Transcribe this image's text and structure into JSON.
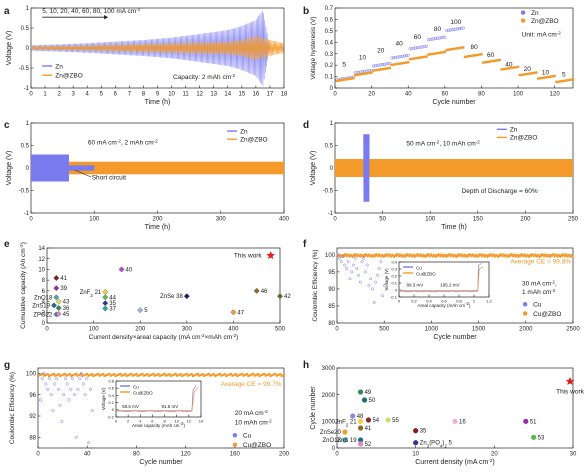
{
  "chart_data": [
    {
      "id": "a",
      "type": "line",
      "panel_label": "a",
      "xlabel": "Time (h)",
      "ylabel": "Voltage (V)",
      "xlim": [
        0,
        18
      ],
      "ylim": [
        -1.0,
        1.0
      ],
      "xticks": [
        0,
        1,
        2,
        3,
        4,
        5,
        6,
        7,
        8,
        9,
        10,
        11,
        12,
        13,
        14,
        15,
        16,
        17,
        18
      ],
      "yticks": [
        -1.0,
        -0.5,
        0.0,
        0.5,
        1.0
      ],
      "annotations": {
        "rates": "5, 10, 20, 40, 60, 80, 100 mA cm",
        "rates_sup": "-2",
        "capacity": "Capacity: 2 mAh cm",
        "capacity_sup": "-2"
      },
      "legend": [
        "Zn",
        "Zn@ZBO"
      ],
      "series": [
        {
          "name": "Zn",
          "color": "#7b7bf0",
          "envelope": [
            [
              0,
              0.07
            ],
            [
              2,
              0.09
            ],
            [
              4,
              0.12
            ],
            [
              6,
              0.16
            ],
            [
              8,
              0.2
            ],
            [
              10,
              0.26
            ],
            [
              12,
              0.35
            ],
            [
              14,
              0.45
            ],
            [
              15,
              0.55
            ],
            [
              16,
              0.7
            ],
            [
              16.5,
              0.95
            ],
            [
              17,
              0.0
            ]
          ]
        },
        {
          "name": "Zn@ZBO",
          "color": "#f39a2b",
          "envelope": [
            [
              0,
              0.04
            ],
            [
              2,
              0.05
            ],
            [
              4,
              0.06
            ],
            [
              6,
              0.08
            ],
            [
              8,
              0.1
            ],
            [
              10,
              0.12
            ],
            [
              12,
              0.14
            ],
            [
              14,
              0.16
            ],
            [
              15,
              0.2
            ],
            [
              16,
              0.3
            ],
            [
              17,
              0.2
            ],
            [
              18,
              0.12
            ]
          ]
        }
      ]
    },
    {
      "id": "b",
      "type": "scatter",
      "panel_label": "b",
      "xlabel": "Cycle number",
      "ylabel": "Voltage hysteresis (V)",
      "xlim": [
        0,
        130
      ],
      "ylim": [
        0.0,
        0.7
      ],
      "xticks": [
        0,
        20,
        40,
        60,
        80,
        100,
        120
      ],
      "yticks": [
        0.0,
        0.1,
        0.2,
        0.3,
        0.4,
        0.5,
        0.6,
        0.7
      ],
      "unit_note": "Unit: mA cm",
      "unit_sup": "-2",
      "legend": [
        "Zn",
        "Zn@ZBO"
      ],
      "rate_labels": [
        {
          "text": "5",
          "x": 5,
          "y": 0.19
        },
        {
          "text": "10",
          "x": 15,
          "y": 0.25
        },
        {
          "text": "20",
          "x": 25,
          "y": 0.31
        },
        {
          "text": "40",
          "x": 35,
          "y": 0.37
        },
        {
          "text": "60",
          "x": 45,
          "y": 0.43
        },
        {
          "text": "80",
          "x": 56,
          "y": 0.5
        },
        {
          "text": "100",
          "x": 66,
          "y": 0.56
        },
        {
          "text": "80",
          "x": 76,
          "y": 0.34
        },
        {
          "text": "60",
          "x": 85,
          "y": 0.27
        },
        {
          "text": "40",
          "x": 95,
          "y": 0.19
        },
        {
          "text": "20",
          "x": 105,
          "y": 0.15
        },
        {
          "text": "10",
          "x": 115,
          "y": 0.12
        },
        {
          "text": "5",
          "x": 125,
          "y": 0.1
        }
      ],
      "series": [
        {
          "name": "Zn",
          "color": "#7b7bf0",
          "x_range": [
            1,
            70
          ],
          "steps": [
            [
              0,
              10,
              0.07
            ],
            [
              10,
              20,
              0.13
            ],
            [
              20,
              30,
              0.19
            ],
            [
              30,
              40,
              0.26
            ],
            [
              40,
              50,
              0.34
            ],
            [
              50,
              60,
              0.42
            ],
            [
              60,
              70,
              0.5
            ]
          ]
        },
        {
          "name": "Zn@ZBO",
          "color": "#f39a2b",
          "x_range": [
            1,
            130
          ],
          "steps": [
            [
              0,
              10,
              0.06
            ],
            [
              10,
              20,
              0.11
            ],
            [
              20,
              30,
              0.15
            ],
            [
              30,
              40,
              0.2
            ],
            [
              40,
              50,
              0.25
            ],
            [
              50,
              60,
              0.29
            ],
            [
              60,
              70,
              0.33
            ],
            [
              70,
              80,
              0.27
            ],
            [
              80,
              90,
              0.22
            ],
            [
              90,
              100,
              0.16
            ],
            [
              100,
              110,
              0.11
            ],
            [
              110,
              120,
              0.08
            ],
            [
              120,
              130,
              0.05
            ]
          ]
        }
      ]
    },
    {
      "id": "c",
      "type": "line",
      "panel_label": "c",
      "xlabel": "Time (h)",
      "ylabel": "Voltage (V)",
      "xlim": [
        0,
        400
      ],
      "ylim": [
        -1.0,
        1.0
      ],
      "xticks": [
        0,
        100,
        200,
        300,
        400
      ],
      "yticks": [
        -1.0,
        -0.5,
        0.0,
        0.5,
        1.0
      ],
      "condition": "60 mA cm",
      "condition_sup": "-2",
      "condition_tail": ", 2 mAh cm",
      "condition_tail_sup": "-2",
      "note": "Short circuit",
      "legend": [
        "Zn",
        "Zn@ZBO"
      ],
      "series": [
        {
          "name": "Zn",
          "color": "#7b7bf0",
          "segments": [
            [
              0,
              60,
              0.3
            ],
            [
              60,
              100,
              0.05
            ]
          ]
        },
        {
          "name": "Zn@ZBO",
          "color": "#f39a2b",
          "segments": [
            [
              0,
              400,
              0.13
            ]
          ]
        }
      ]
    },
    {
      "id": "d",
      "type": "line",
      "panel_label": "d",
      "xlabel": "Time (h)",
      "ylabel": "Voltage (V)",
      "xlim": [
        0,
        250
      ],
      "ylim": [
        -1.0,
        1.0
      ],
      "xticks": [
        0,
        50,
        100,
        150,
        200,
        250
      ],
      "yticks": [
        -1.0,
        -0.5,
        0.0,
        0.5,
        1.0
      ],
      "condition": "50 mA cm",
      "condition_sup": "-2",
      "condition_tail": ", 10 mAh cm",
      "condition_tail_sup": "-2",
      "note": "Depth of Discharge = 60%",
      "legend": [
        "Zn",
        "Zn@ZBO"
      ],
      "series": [
        {
          "name": "Zn",
          "color": "#7b7bf0",
          "segments": [
            [
              30,
              35,
              0.7
            ]
          ]
        },
        {
          "name": "Zn@ZBO",
          "color": "#f39a2b",
          "segments": [
            [
              0,
              250,
              0.2
            ]
          ]
        }
      ]
    },
    {
      "id": "e",
      "type": "scatter",
      "panel_label": "e",
      "xlabel": "Current density×areal capacity (mA cm",
      "xlabel_sup": "-2",
      "xlabel_mid": "×mAh cm",
      "xlabel_end": ")",
      "ylabel": "Cumulative capacity (Ah cm",
      "ylabel_sup": "-2",
      "ylabel_end": ")",
      "xlim": [
        0,
        500
      ],
      "ylim": [
        0,
        14
      ],
      "xticks": [
        0,
        100,
        200,
        300,
        400,
        500
      ],
      "yticks": [
        0,
        2,
        4,
        6,
        8,
        10,
        12,
        14
      ],
      "points": [
        {
          "label": "41",
          "x": 20,
          "y": 8.4,
          "color": "#8b1a1a",
          "marker": "diamond"
        },
        {
          "label": "39",
          "x": 20,
          "y": 6.5,
          "color": "#9a2aa8",
          "marker": "diamond"
        },
        {
          "label": "ZnO18",
          "x": 20,
          "y": 4.8,
          "color": "#4aa8a8",
          "marker": "diamond"
        },
        {
          "label": "43",
          "x": 25,
          "y": 4.0,
          "color": "#e0e060",
          "marker": "diamond"
        },
        {
          "label": "ZnS19",
          "x": 15,
          "y": 3.3,
          "color": "#1c6e8c",
          "marker": "diamond"
        },
        {
          "label": "36",
          "x": 25,
          "y": 2.8,
          "color": "#2e8b57",
          "marker": "diamond"
        },
        {
          "label": "ZPO22",
          "x": 20,
          "y": 1.6,
          "color": "#5a7ac8",
          "marker": "diamond"
        },
        {
          "label": "45",
          "x": 25,
          "y": 1.7,
          "color": "#e08ac0",
          "marker": "diamond"
        },
        {
          "label": "40",
          "x": 160,
          "y": 10.0,
          "color": "#b64ad0",
          "marker": "diamond"
        },
        {
          "label": "ZnF",
          "label_sub": "2",
          "label_tail": " 21",
          "x": 125,
          "y": 5.8,
          "color": "#f2d03a",
          "marker": "diamond"
        },
        {
          "label": "44",
          "x": 125,
          "y": 4.8,
          "color": "#5ab84e",
          "marker": "diamond"
        },
        {
          "label": "35",
          "x": 125,
          "y": 3.7,
          "color": "#2a3a88",
          "marker": "diamond"
        },
        {
          "label": "37",
          "x": 125,
          "y": 2.7,
          "color": "#2aa8a8",
          "marker": "diamond"
        },
        {
          "label": "5",
          "x": 200,
          "y": 2.4,
          "color": "#a0b4e8",
          "marker": "diamond"
        },
        {
          "label": "ZnSe 38",
          "x": 300,
          "y": 5.0,
          "color": "#1a1a78",
          "marker": "diamond"
        },
        {
          "label": "46",
          "x": 450,
          "y": 6.0,
          "color": "#8a6a2a",
          "marker": "diamond"
        },
        {
          "label": "47",
          "x": 400,
          "y": 2.0,
          "color": "#f2a02a",
          "marker": "diamond"
        },
        {
          "label": "42",
          "x": 500,
          "y": 5.0,
          "color": "#6a6a1a",
          "marker": "diamond"
        },
        {
          "label": "This work",
          "x": 480,
          "y": 12.6,
          "color": "#e02020",
          "marker": "star"
        }
      ]
    },
    {
      "id": "f",
      "type": "scatter",
      "panel_label": "f",
      "xlabel": "Cycle number",
      "ylabel": "Coulombic Efficiency (%)",
      "xlim": [
        0,
        2500
      ],
      "ylim": [
        80,
        102
      ],
      "xticks": [
        0,
        500,
        1000,
        1500,
        2000,
        2500
      ],
      "yticks": [
        80,
        85,
        90,
        95,
        100
      ],
      "avg_ce": "Average CE = 99.8%",
      "condition": [
        "30 mA cm",
        "-2",
        ",",
        "1 mAh cm",
        "-2"
      ],
      "legend": [
        "Cu",
        "Cu@ZBO"
      ],
      "series": [
        {
          "name": "Cu",
          "color": "#7b7bf0",
          "x_range": [
            1,
            520
          ],
          "mean": 97,
          "scatter": 5
        },
        {
          "name": "Cu@ZBO",
          "color": "#f39a2b",
          "x_range": [
            1,
            2500
          ],
          "mean": 99.8
        }
      ],
      "inset": {
        "xlabel": "Areal capacity (mAh cm",
        "xlabel_sup": "-2",
        "xlabel_end": ")",
        "ylabel": "Voltage (V)",
        "xlim": [
          0,
          1.2
        ],
        "ylim": [
          -0.1,
          0.4
        ],
        "xticks": [
          0.0,
          0.2,
          0.4,
          0.6,
          0.8,
          1.0,
          1.2
        ],
        "yticks": [
          -0.1,
          0.0,
          0.1,
          0.2,
          0.3,
          0.4
        ],
        "legend": [
          "Cu",
          "Cu@ZBO"
        ],
        "annotations": [
          "89.3 mV",
          "195.2 mV"
        ]
      }
    },
    {
      "id": "g",
      "type": "scatter",
      "panel_label": "g",
      "xlabel": "Cycle number",
      "ylabel": "Coulombic Efficiency (%)",
      "xlim": [
        0,
        200
      ],
      "ylim": [
        86,
        101
      ],
      "xticks": [
        0,
        40,
        80,
        120,
        160,
        200
      ],
      "yticks": [
        88,
        92,
        96,
        100
      ],
      "avg_ce": "Average CE = 99.7%",
      "condition": [
        "20 mA cm",
        "-2",
        "10 mAh cm",
        "-2"
      ],
      "legend": [
        "Cu",
        "Cu@ZBO"
      ],
      "series": [
        {
          "name": "Cu",
          "color": "#7b7bf0",
          "x_range": [
            1,
            45
          ],
          "mean": 95,
          "scatter": 5
        },
        {
          "name": "Cu@ZBO",
          "color": "#f39a2b",
          "x_range": [
            1,
            200
          ],
          "mean": 99.7
        }
      ],
      "inset": {
        "xlabel": "Areal capacity (mAh cm",
        "xlabel_sup": "-2",
        "xlabel_end": ")",
        "ylabel": "Voltage (V)",
        "xlim": [
          0,
          14
        ],
        "ylim": [
          -0.2,
          0.8
        ],
        "xticks": [
          0,
          2,
          4,
          6,
          8,
          10,
          12,
          14
        ],
        "yticks": [
          -0.2,
          0.0,
          0.2,
          0.4,
          0.6,
          0.8
        ],
        "legend": [
          "Cu",
          "Cu@ZBO"
        ],
        "annotations": [
          "58.5 mV",
          "91.6 mV"
        ]
      }
    },
    {
      "id": "h",
      "type": "scatter",
      "panel_label": "h",
      "xlabel": "Current density (mA cm",
      "xlabel_sup": "-2",
      "xlabel_end": ")",
      "ylabel": "Cycle number",
      "xlim": [
        0,
        30
      ],
      "ylim": [
        0,
        3000
      ],
      "xticks": [
        0,
        10,
        20,
        30
      ],
      "yticks": [
        0,
        1000,
        2000,
        3000
      ],
      "points": [
        {
          "label": "49",
          "x": 3,
          "y": 2100,
          "color": "#2e8b57"
        },
        {
          "label": "50",
          "x": 3.5,
          "y": 1800,
          "color": "#1a6e6e"
        },
        {
          "label": "48",
          "x": 2,
          "y": 1200,
          "color": "#8a8ae8"
        },
        {
          "label": "54",
          "x": 4,
          "y": 1050,
          "color": "#8a2a2a"
        },
        {
          "label": "55",
          "x": 6.5,
          "y": 1050,
          "color": "#c8e070"
        },
        {
          "label": "ZnF",
          "label_sub": "2",
          "label_tail": " 21",
          "x": 3,
          "y": 1000,
          "color": "#f2d03a"
        },
        {
          "label": "41",
          "x": 3,
          "y": 750,
          "color": "#8a6a2a"
        },
        {
          "label": "ZnSe20",
          "x": 1,
          "y": 600,
          "color": "#f2a02a"
        },
        {
          "label": "35",
          "x": 10,
          "y": 650,
          "color": "#8b1a1a"
        },
        {
          "label": "ZnO18",
          "x": 1,
          "y": 300,
          "color": "#4aa8a8"
        },
        {
          "label": "ZnS 19",
          "x": 3,
          "y": 300,
          "color": "#1c6e8c"
        },
        {
          "label": "52",
          "x": 3,
          "y": 150,
          "color": "#e08ac0"
        },
        {
          "label": "Zn",
          "label_sub": "3",
          "label_mid": "(PO",
          "label_sub2": "4",
          "label_tail": ")",
          "label_sub3": "2",
          "label_end": " 5",
          "x": 10,
          "y": 200,
          "color": "#2a3a88"
        },
        {
          "label": "16",
          "x": 15,
          "y": 1000,
          "color": "#f0b0c8"
        },
        {
          "label": "51",
          "x": 24,
          "y": 1000,
          "color": "#9a2aa8"
        },
        {
          "label": "53",
          "x": 25,
          "y": 400,
          "color": "#5ab84e"
        },
        {
          "label": "This work",
          "x": 30,
          "y": 2500,
          "color": "#e02020",
          "marker": "star"
        }
      ]
    }
  ]
}
